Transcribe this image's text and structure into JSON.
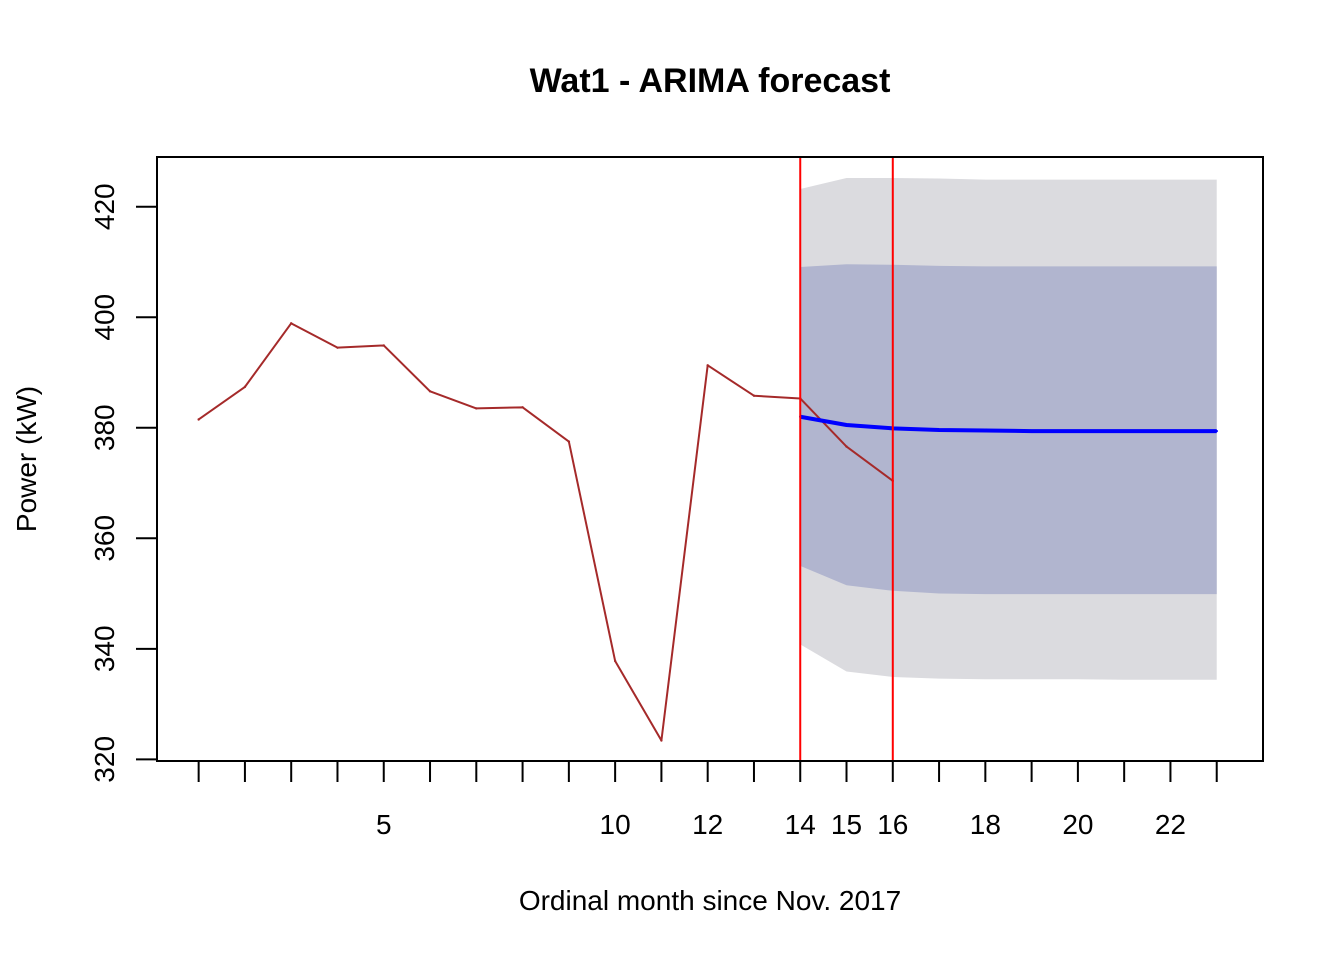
{
  "chart_data": {
    "type": "line",
    "title": "Wat1 - ARIMA forecast",
    "xlabel": "Ordinal month since Nov. 2017",
    "ylabel": "Power (kW)",
    "xlim": [
      0.1,
      24.0
    ],
    "ylim": [
      319.7,
      429.0
    ],
    "x_ticks": [
      1,
      2,
      3,
      4,
      5,
      6,
      7,
      8,
      9,
      10,
      11,
      12,
      13,
      14,
      15,
      16,
      17,
      18,
      19,
      20,
      21,
      22,
      23
    ],
    "x_tick_labels": [
      {
        "x": 5,
        "label": "5"
      },
      {
        "x": 10,
        "label": "10"
      },
      {
        "x": 12,
        "label": "12"
      },
      {
        "x": 14,
        "label": "14"
      },
      {
        "x": 15,
        "label": "15"
      },
      {
        "x": 16,
        "label": "16"
      },
      {
        "x": 18,
        "label": "18"
      },
      {
        "x": 20,
        "label": "20"
      },
      {
        "x": 22,
        "label": "22"
      }
    ],
    "y_ticks": [
      320,
      340,
      360,
      380,
      400,
      420
    ],
    "y_tick_labels": [
      "320",
      "340",
      "360",
      "380",
      "400",
      "420"
    ],
    "grid": false,
    "series": [
      {
        "style": "actual",
        "color": "#a52a2a",
        "x": [
          1,
          2,
          3,
          4,
          5,
          6,
          7,
          8,
          9,
          10,
          11,
          12,
          13,
          14,
          15,
          16
        ],
        "y": [
          381.5,
          387.4,
          398.9,
          394.5,
          394.9,
          386.6,
          383.5,
          383.7,
          377.5,
          337.8,
          323.4,
          391.3,
          385.8,
          385.3,
          376.6,
          370.4
        ]
      },
      {
        "style": "forecast",
        "color": "#0000ff",
        "x": [
          14,
          15,
          16,
          17,
          18,
          19,
          20,
          21,
          22,
          23
        ],
        "y": [
          382.0,
          380.5,
          379.9,
          379.6,
          379.5,
          379.4,
          379.4,
          379.4,
          379.4,
          379.4
        ]
      }
    ],
    "intervals": [
      {
        "level": "95",
        "color": "#dbdbdf",
        "x": [
          14,
          15,
          16,
          17,
          18,
          19,
          20,
          21,
          22,
          23
        ],
        "lower": [
          340.8,
          335.9,
          334.9,
          334.6,
          334.5,
          334.5,
          334.5,
          334.4,
          334.4,
          334.4
        ],
        "upper": [
          423.2,
          425.2,
          425.2,
          425.1,
          424.9,
          424.9,
          424.9,
          424.9,
          424.9,
          424.9
        ]
      },
      {
        "level": "80",
        "color": "#b1b5cf",
        "x": [
          14,
          15,
          16,
          17,
          18,
          19,
          20,
          21,
          22,
          23
        ],
        "lower": [
          355.0,
          351.5,
          350.5,
          350.0,
          349.9,
          349.9,
          349.9,
          349.9,
          349.9,
          349.9
        ],
        "upper": [
          409.1,
          409.6,
          409.5,
          409.3,
          409.2,
          409.2,
          409.2,
          409.2,
          409.2,
          409.2
        ]
      }
    ],
    "vlines": [
      {
        "x": 14,
        "color": "#ff0000"
      },
      {
        "x": 16,
        "color": "#ff0000"
      }
    ]
  }
}
